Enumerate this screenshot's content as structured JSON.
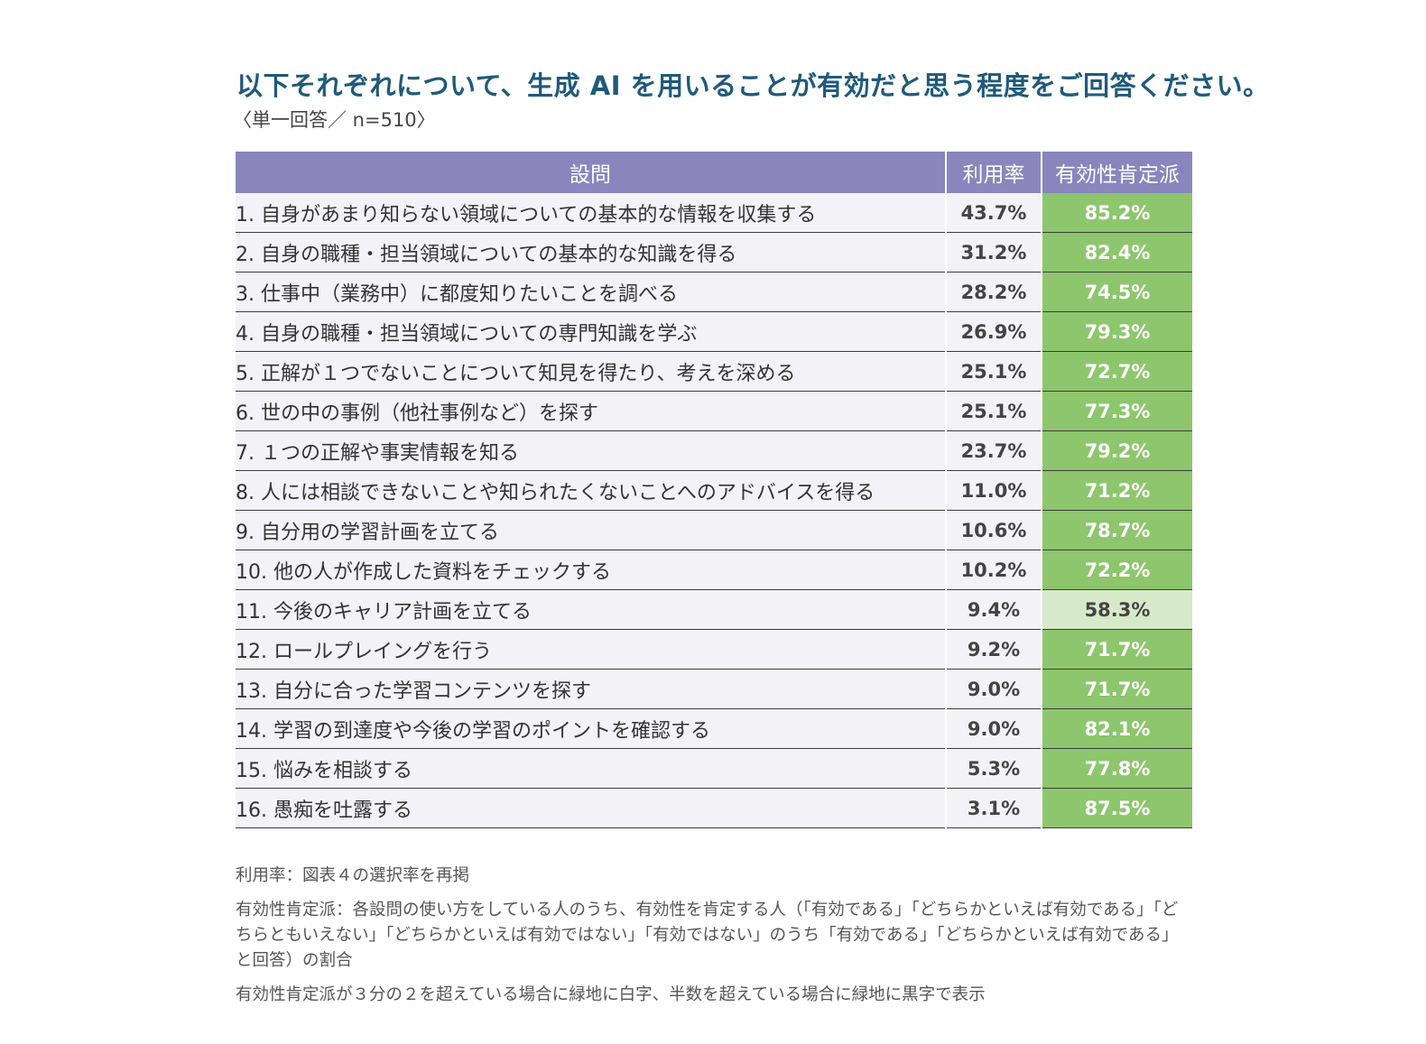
{
  "title": "以下それぞれについて、生成 AI を用いることが有効だと思う程度をご回答ください。",
  "subtitle": "〈単一回答／ n=510〉",
  "chart_data": {
    "type": "table",
    "title": "以下それぞれについて、生成 AI を用いることが有効だと思う程度をご回答ください。",
    "columns": [
      "設問",
      "利用率",
      "有効性肯定派"
    ],
    "rows": [
      {
        "question": "1. 自身があまり知らない領域についての基本的な情報を収集する",
        "usage": "43.7%",
        "effective": "85.2%",
        "level": "strong"
      },
      {
        "question": "2. 自身の職種・担当領域についての基本的な知識を得る",
        "usage": "31.2%",
        "effective": "82.4%",
        "level": "strong"
      },
      {
        "question": "3. 仕事中（業務中）に都度知りたいことを調べる",
        "usage": "28.2%",
        "effective": "74.5%",
        "level": "strong"
      },
      {
        "question": "4. 自身の職種・担当領域についての専門知識を学ぶ",
        "usage": "26.9%",
        "effective": "79.3%",
        "level": "strong"
      },
      {
        "question": "5. 正解が１つでないことについて知見を得たり、考えを深める",
        "usage": "25.1%",
        "effective": "72.7%",
        "level": "strong"
      },
      {
        "question": "6. 世の中の事例（他社事例など）を探す",
        "usage": "25.1%",
        "effective": "77.3%",
        "level": "strong"
      },
      {
        "question": "7. １つの正解や事実情報を知る",
        "usage": "23.7%",
        "effective": "79.2%",
        "level": "strong"
      },
      {
        "question": "8. 人には相談できないことや知られたくないことへのアドバイスを得る",
        "usage": "11.0%",
        "effective": "71.2%",
        "level": "strong"
      },
      {
        "question": "9. 自分用の学習計画を立てる",
        "usage": "10.6%",
        "effective": "78.7%",
        "level": "strong"
      },
      {
        "question": "10. 他の人が作成した資料をチェックする",
        "usage": "10.2%",
        "effective": "72.2%",
        "level": "strong"
      },
      {
        "question": "11. 今後のキャリア計画を立てる",
        "usage": "9.4%",
        "effective": "58.3%",
        "level": "weak"
      },
      {
        "question": "12. ロールプレイングを行う",
        "usage": "9.2%",
        "effective": "71.7%",
        "level": "strong"
      },
      {
        "question": "13. 自分に合った学習コンテンツを探す",
        "usage": "9.0%",
        "effective": "71.7%",
        "level": "strong"
      },
      {
        "question": "14. 学習の到達度や今後の学習のポイントを確認する",
        "usage": "9.0%",
        "effective": "82.1%",
        "level": "strong"
      },
      {
        "question": "15. 悩みを相談する",
        "usage": "5.3%",
        "effective": "77.8%",
        "level": "strong"
      },
      {
        "question": "16. 愚痴を吐露する",
        "usage": "3.1%",
        "effective": "87.5%",
        "level": "strong"
      }
    ]
  },
  "notes": [
    "利用率：図表４の選択率を再掲",
    "有効性肯定派：各設問の使い方をしている人のうち、有効性を肯定する人（「有効である」「どちらかといえば有効である」「どちらともいえない」「どちらかといえば有効ではない」「有効ではない」のうち「有効である」「どちらかといえば有効である」と回答）の割合",
    "有効性肯定派が３分の２を超えている場合に緑地に白字、半数を超えている場合に緑地に黒字で表示"
  ],
  "colors": {
    "header_bg": "#8a85bd",
    "strong_bg": "#8dc66c",
    "weak_bg": "#d6e9c8",
    "title": "#1f5a7a"
  }
}
